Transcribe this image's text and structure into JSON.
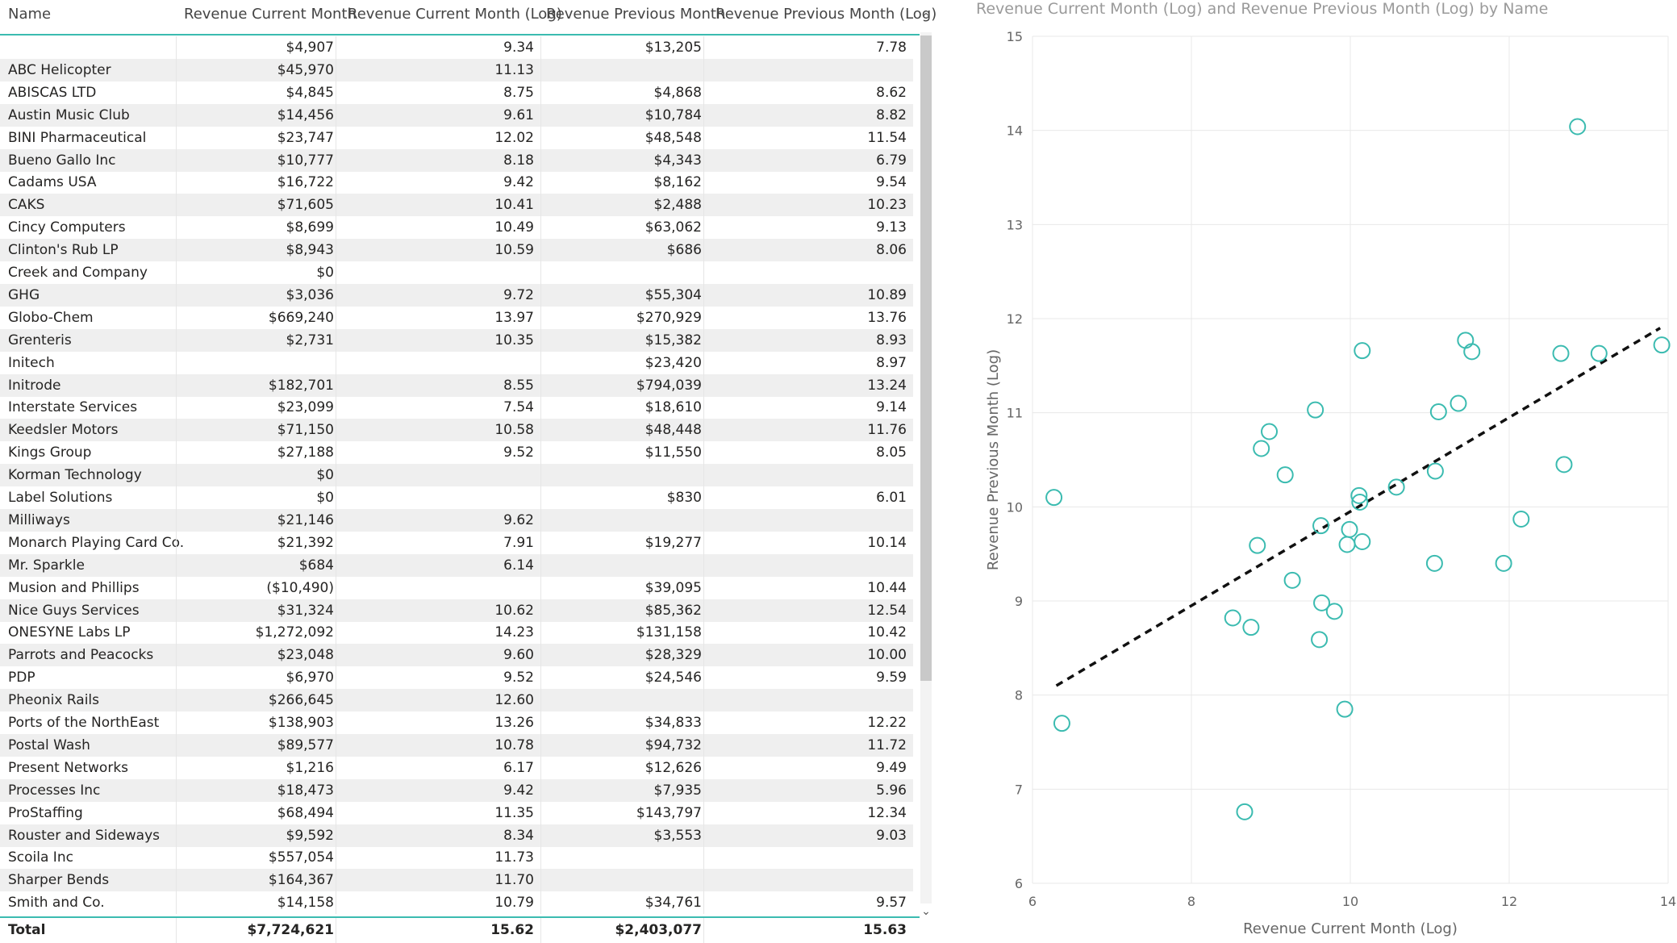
{
  "table": {
    "headers": [
      "Name",
      "Revenue Current Month",
      "Revenue Current Month (Log)",
      "Revenue Previous Month",
      "Revenue Previous Month (Log)"
    ],
    "rows": [
      [
        "",
        "$4,907",
        "9.34",
        "$13,205",
        "7.78"
      ],
      [
        "ABC Helicopter",
        "$45,970",
        "11.13",
        "",
        ""
      ],
      [
        "ABISCAS LTD",
        "$4,845",
        "8.75",
        "$4,868",
        "8.62"
      ],
      [
        "Austin Music Club",
        "$14,456",
        "9.61",
        "$10,784",
        "8.82"
      ],
      [
        "BINI Pharmaceutical",
        "$23,747",
        "12.02",
        "$48,548",
        "11.54"
      ],
      [
        "Bueno Gallo Inc",
        "$10,777",
        "8.18",
        "$4,343",
        "6.79"
      ],
      [
        "Cadams USA",
        "$16,722",
        "9.42",
        "$8,162",
        "9.54"
      ],
      [
        "CAKS",
        "$71,605",
        "10.41",
        "$2,488",
        "10.23"
      ],
      [
        "Cincy Computers",
        "$8,699",
        "10.49",
        "$63,062",
        "9.13"
      ],
      [
        "Clinton's Rub LP",
        "$8,943",
        "10.59",
        "$686",
        "8.06"
      ],
      [
        "Creek and Company",
        "$0",
        "",
        "",
        ""
      ],
      [
        "GHG",
        "$3,036",
        "9.72",
        "$55,304",
        "10.89"
      ],
      [
        "Globo-Chem",
        "$669,240",
        "13.97",
        "$270,929",
        "13.76"
      ],
      [
        "Grenteris",
        "$2,731",
        "10.35",
        "$15,382",
        "8.93"
      ],
      [
        "Initech",
        "",
        "",
        "$23,420",
        "8.97"
      ],
      [
        "Initrode",
        "$182,701",
        "8.55",
        "$794,039",
        "13.24"
      ],
      [
        "Interstate Services",
        "$23,099",
        "7.54",
        "$18,610",
        "9.14"
      ],
      [
        "Keedsler Motors",
        "$71,150",
        "10.58",
        "$48,448",
        "11.76"
      ],
      [
        "Kings Group",
        "$27,188",
        "9.52",
        "$11,550",
        "8.05"
      ],
      [
        "Korman Technology",
        "$0",
        "",
        "",
        ""
      ],
      [
        "Label Solutions",
        "$0",
        "",
        "$830",
        "6.01"
      ],
      [
        "Milliways",
        "$21,146",
        "9.62",
        "",
        ""
      ],
      [
        "Monarch Playing Card Co.",
        "$21,392",
        "7.91",
        "$19,277",
        "10.14"
      ],
      [
        "Mr. Sparkle",
        "$684",
        "6.14",
        "",
        ""
      ],
      [
        "Musion and Phillips",
        "($10,490)",
        "",
        "$39,095",
        "10.44"
      ],
      [
        "Nice Guys Services",
        "$31,324",
        "10.62",
        "$85,362",
        "12.54"
      ],
      [
        "ONESYNE Labs LP",
        "$1,272,092",
        "14.23",
        "$131,158",
        "10.42"
      ],
      [
        "Parrots and Peacocks",
        "$23,048",
        "9.60",
        "$28,329",
        "10.00"
      ],
      [
        "PDP",
        "$6,970",
        "9.52",
        "$24,546",
        "9.59"
      ],
      [
        "Pheonix Rails",
        "$266,645",
        "12.60",
        "",
        ""
      ],
      [
        "Ports of the NorthEast",
        "$138,903",
        "13.26",
        "$34,833",
        "12.22"
      ],
      [
        "Postal Wash",
        "$89,577",
        "10.78",
        "$94,732",
        "11.72"
      ],
      [
        "Present Networks",
        "$1,216",
        "6.17",
        "$12,626",
        "9.49"
      ],
      [
        "Processes Inc",
        "$18,473",
        "9.42",
        "$7,935",
        "5.96"
      ],
      [
        "ProStaffing",
        "$68,494",
        "11.35",
        "$143,797",
        "12.34"
      ],
      [
        "Rouster and Sideways",
        "$9,592",
        "8.34",
        "$3,553",
        "9.03"
      ],
      [
        "Scoila Inc",
        "$557,054",
        "11.73",
        "",
        ""
      ],
      [
        "Sharper Bends",
        "$164,367",
        "11.70",
        "",
        ""
      ],
      [
        "Smith and Co.",
        "$14,158",
        "10.79",
        "$34,761",
        "9.57"
      ]
    ],
    "total": [
      "Total",
      "$7,724,621",
      "15.62",
      "$2,403,077",
      "15.63"
    ]
  },
  "scrollbar": {
    "up_glyph": "⌃",
    "down_glyph": "⌄"
  },
  "colors": {
    "accent": "#3bbbb0",
    "marker": "#3bbbb0",
    "trend": "#111111"
  },
  "chart_data": {
    "type": "scatter",
    "title": "Revenue Current Month (Log) and Revenue Previous Month (Log) by Name",
    "xlabel": "Revenue Current Month (Log)",
    "ylabel": "Revenue Previous Month (Log)",
    "xlim": [
      6,
      14
    ],
    "ylim": [
      6,
      15
    ],
    "xticks": [
      6,
      8,
      10,
      12,
      14
    ],
    "yticks": [
      6,
      7,
      8,
      9,
      10,
      11,
      12,
      13,
      14,
      15
    ],
    "grid": true,
    "trendline": {
      "style": "dashed",
      "from": [
        6.3,
        8.1
      ],
      "to": [
        13.9,
        11.9
      ]
    },
    "points": [
      {
        "x": 6.27,
        "y": 10.1
      },
      {
        "x": 6.37,
        "y": 7.7
      },
      {
        "x": 8.52,
        "y": 8.82
      },
      {
        "x": 8.67,
        "y": 6.76
      },
      {
        "x": 8.75,
        "y": 8.72
      },
      {
        "x": 8.83,
        "y": 9.59
      },
      {
        "x": 8.88,
        "y": 10.62
      },
      {
        "x": 8.98,
        "y": 10.8
      },
      {
        "x": 9.18,
        "y": 10.34
      },
      {
        "x": 9.27,
        "y": 9.22
      },
      {
        "x": 9.56,
        "y": 11.03
      },
      {
        "x": 9.61,
        "y": 8.59
      },
      {
        "x": 9.63,
        "y": 9.8
      },
      {
        "x": 9.64,
        "y": 8.98
      },
      {
        "x": 9.8,
        "y": 8.89
      },
      {
        "x": 9.93,
        "y": 7.85
      },
      {
        "x": 9.96,
        "y": 9.6
      },
      {
        "x": 9.99,
        "y": 9.76
      },
      {
        "x": 10.11,
        "y": 10.12
      },
      {
        "x": 10.12,
        "y": 10.05
      },
      {
        "x": 10.15,
        "y": 9.63
      },
      {
        "x": 10.15,
        "y": 11.66
      },
      {
        "x": 10.58,
        "y": 10.21
      },
      {
        "x": 11.06,
        "y": 9.4
      },
      {
        "x": 11.07,
        "y": 10.38
      },
      {
        "x": 11.11,
        "y": 11.01
      },
      {
        "x": 11.36,
        "y": 11.1
      },
      {
        "x": 11.45,
        "y": 11.77
      },
      {
        "x": 11.53,
        "y": 11.65
      },
      {
        "x": 11.93,
        "y": 9.4
      },
      {
        "x": 12.15,
        "y": 9.87
      },
      {
        "x": 12.65,
        "y": 11.63
      },
      {
        "x": 12.69,
        "y": 10.45
      },
      {
        "x": 12.86,
        "y": 14.04
      },
      {
        "x": 13.13,
        "y": 11.63
      },
      {
        "x": 13.92,
        "y": 11.72
      }
    ]
  }
}
